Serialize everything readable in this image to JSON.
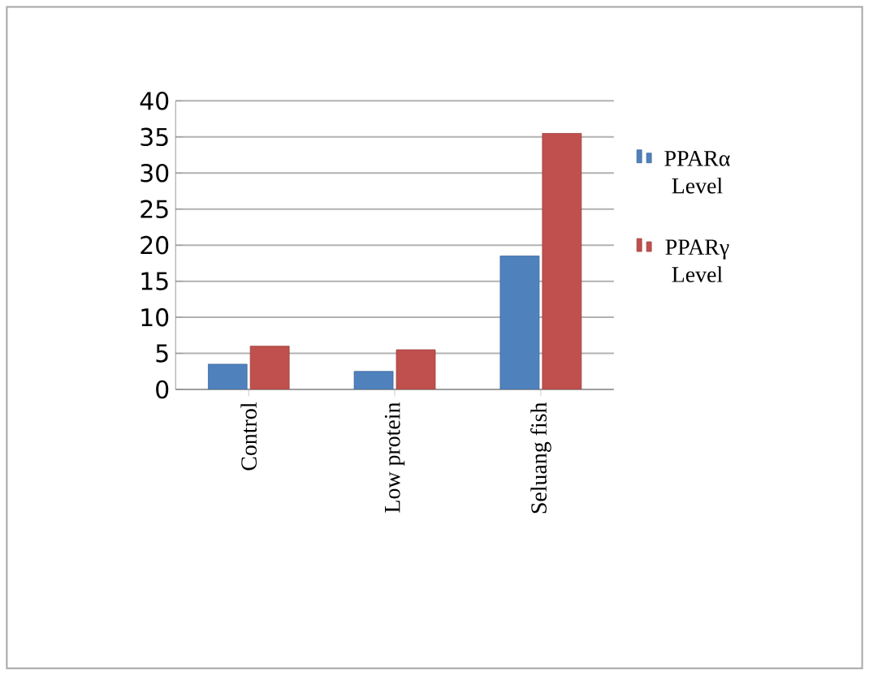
{
  "chart_data": {
    "type": "bar",
    "categories": [
      "Control",
      "Low protein",
      "Seluang fish"
    ],
    "series": [
      {
        "name": "PPARα Level",
        "color": "#4f81bd",
        "values": [
          3.5,
          2.5,
          18.5
        ]
      },
      {
        "name": "PPARγ Level",
        "color": "#c0504d",
        "values": [
          6,
          5.5,
          35.5
        ]
      }
    ],
    "ylim": [
      0,
      40
    ],
    "yticks": [
      0,
      5,
      10,
      15,
      20,
      25,
      30,
      35,
      40
    ],
    "grid": "y",
    "legend": "right"
  }
}
